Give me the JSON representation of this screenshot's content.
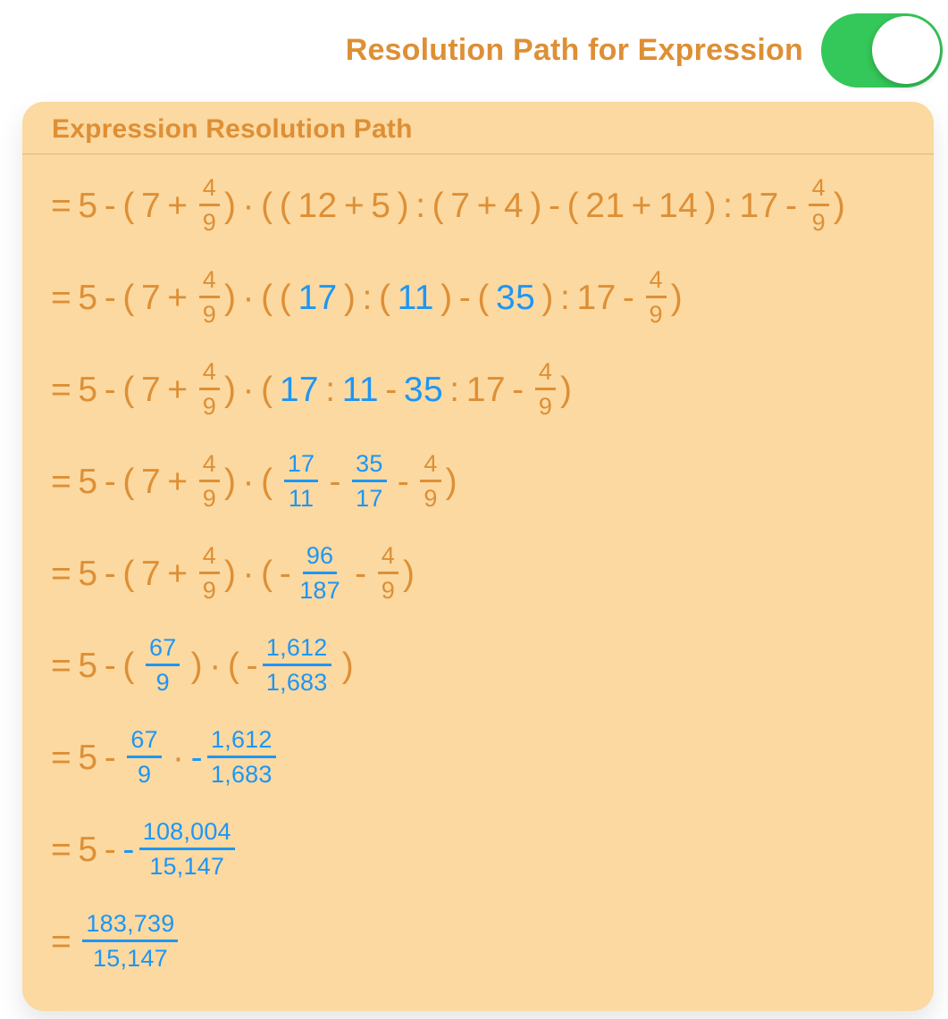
{
  "colors": {
    "orange": "#DE8F35",
    "blue": "#1E96F3",
    "card_bg": "#FBD9A1",
    "toggle_green": "#34C759"
  },
  "toggle_row": {
    "label": "Resolution Path for Expression",
    "toggle_on": true
  },
  "card": {
    "title": "Expression Resolution Path",
    "steps": [
      {
        "tokens": [
          {
            "type": "text",
            "color": "orange",
            "text": "= 5 - ( 7 + "
          },
          {
            "type": "frac",
            "color": "orange",
            "num": "4",
            "den": "9"
          },
          {
            "type": "text",
            "color": "orange",
            "text": ") · ( ( 12 + 5 ) : ( 7 + 4 ) - ( 21 + 14 ) : 17 - "
          },
          {
            "type": "frac",
            "color": "orange",
            "num": "4",
            "den": "9"
          },
          {
            "type": "text",
            "color": "orange",
            "text": ")"
          }
        ]
      },
      {
        "tokens": [
          {
            "type": "text",
            "color": "orange",
            "text": "= 5 - ( 7 + "
          },
          {
            "type": "frac",
            "color": "orange",
            "num": "4",
            "den": "9"
          },
          {
            "type": "text",
            "color": "orange",
            "text": ") · ( ( "
          },
          {
            "type": "text",
            "color": "blue",
            "text": "17"
          },
          {
            "type": "text",
            "color": "orange",
            "text": " ) : ( "
          },
          {
            "type": "text",
            "color": "blue",
            "text": "11"
          },
          {
            "type": "text",
            "color": "orange",
            "text": " ) - ( "
          },
          {
            "type": "text",
            "color": "blue",
            "text": "35"
          },
          {
            "type": "text",
            "color": "orange",
            "text": " ) : 17 - "
          },
          {
            "type": "frac",
            "color": "orange",
            "num": "4",
            "den": "9"
          },
          {
            "type": "text",
            "color": "orange",
            "text": ")"
          }
        ]
      },
      {
        "tokens": [
          {
            "type": "text",
            "color": "orange",
            "text": "= 5 - ( 7 + "
          },
          {
            "type": "frac",
            "color": "orange",
            "num": "4",
            "den": "9"
          },
          {
            "type": "text",
            "color": "orange",
            "text": ") · ( "
          },
          {
            "type": "text",
            "color": "blue",
            "text": "17"
          },
          {
            "type": "text",
            "color": "orange",
            "text": " : "
          },
          {
            "type": "text",
            "color": "blue",
            "text": "11"
          },
          {
            "type": "text",
            "color": "orange",
            "text": " - "
          },
          {
            "type": "text",
            "color": "blue",
            "text": "35"
          },
          {
            "type": "text",
            "color": "orange",
            "text": " : 17 - "
          },
          {
            "type": "frac",
            "color": "orange",
            "num": "4",
            "den": "9"
          },
          {
            "type": "text",
            "color": "orange",
            "text": ")"
          }
        ]
      },
      {
        "tokens": [
          {
            "type": "text",
            "color": "orange",
            "text": "= 5 - ( 7 + "
          },
          {
            "type": "frac",
            "color": "orange",
            "num": "4",
            "den": "9"
          },
          {
            "type": "text",
            "color": "orange",
            "text": ") · ( "
          },
          {
            "type": "frac",
            "color": "blue",
            "num": "17",
            "den": "11"
          },
          {
            "type": "text",
            "color": "orange",
            "text": " - "
          },
          {
            "type": "frac",
            "color": "blue",
            "num": "35",
            "den": "17"
          },
          {
            "type": "text",
            "color": "orange",
            "text": " - "
          },
          {
            "type": "frac",
            "color": "orange",
            "num": "4",
            "den": "9"
          },
          {
            "type": "text",
            "color": "orange",
            "text": ")"
          }
        ]
      },
      {
        "tokens": [
          {
            "type": "text",
            "color": "orange",
            "text": "= 5 - ( 7 + "
          },
          {
            "type": "frac",
            "color": "orange",
            "num": "4",
            "den": "9"
          },
          {
            "type": "text",
            "color": "orange",
            "text": ") · ( -"
          },
          {
            "type": "frac",
            "color": "blue",
            "num": "96",
            "den": "187"
          },
          {
            "type": "text",
            "color": "orange",
            "text": " - "
          },
          {
            "type": "frac",
            "color": "orange",
            "num": "4",
            "den": "9"
          },
          {
            "type": "text",
            "color": "orange",
            "text": ")"
          }
        ]
      },
      {
        "tokens": [
          {
            "type": "text",
            "color": "orange",
            "text": "= 5 - ( "
          },
          {
            "type": "frac",
            "color": "blue",
            "num": "67",
            "den": "9"
          },
          {
            "type": "text",
            "color": "orange",
            "text": " ) · ( -"
          },
          {
            "type": "frac",
            "color": "blue",
            "num": "1,612",
            "den": "1,683"
          },
          {
            "type": "text",
            "color": "orange",
            "text": " )"
          }
        ]
      },
      {
        "tokens": [
          {
            "type": "text",
            "color": "orange",
            "text": "= 5 - "
          },
          {
            "type": "frac",
            "color": "blue",
            "num": "67",
            "den": "9"
          },
          {
            "type": "text",
            "color": "orange",
            "text": " · "
          },
          {
            "type": "text",
            "color": "blue",
            "text": "-"
          },
          {
            "type": "frac",
            "color": "blue",
            "num": "1,612",
            "den": "1,683"
          }
        ]
      },
      {
        "tokens": [
          {
            "type": "text",
            "color": "orange",
            "text": "= 5 - "
          },
          {
            "type": "text",
            "color": "blue",
            "text": "-"
          },
          {
            "type": "frac",
            "color": "blue",
            "num": "108,004",
            "den": "15,147"
          }
        ]
      },
      {
        "tokens": [
          {
            "type": "text",
            "color": "orange",
            "text": "= "
          },
          {
            "type": "frac",
            "color": "blue",
            "num": "183,739",
            "den": "15,147"
          }
        ]
      }
    ]
  }
}
